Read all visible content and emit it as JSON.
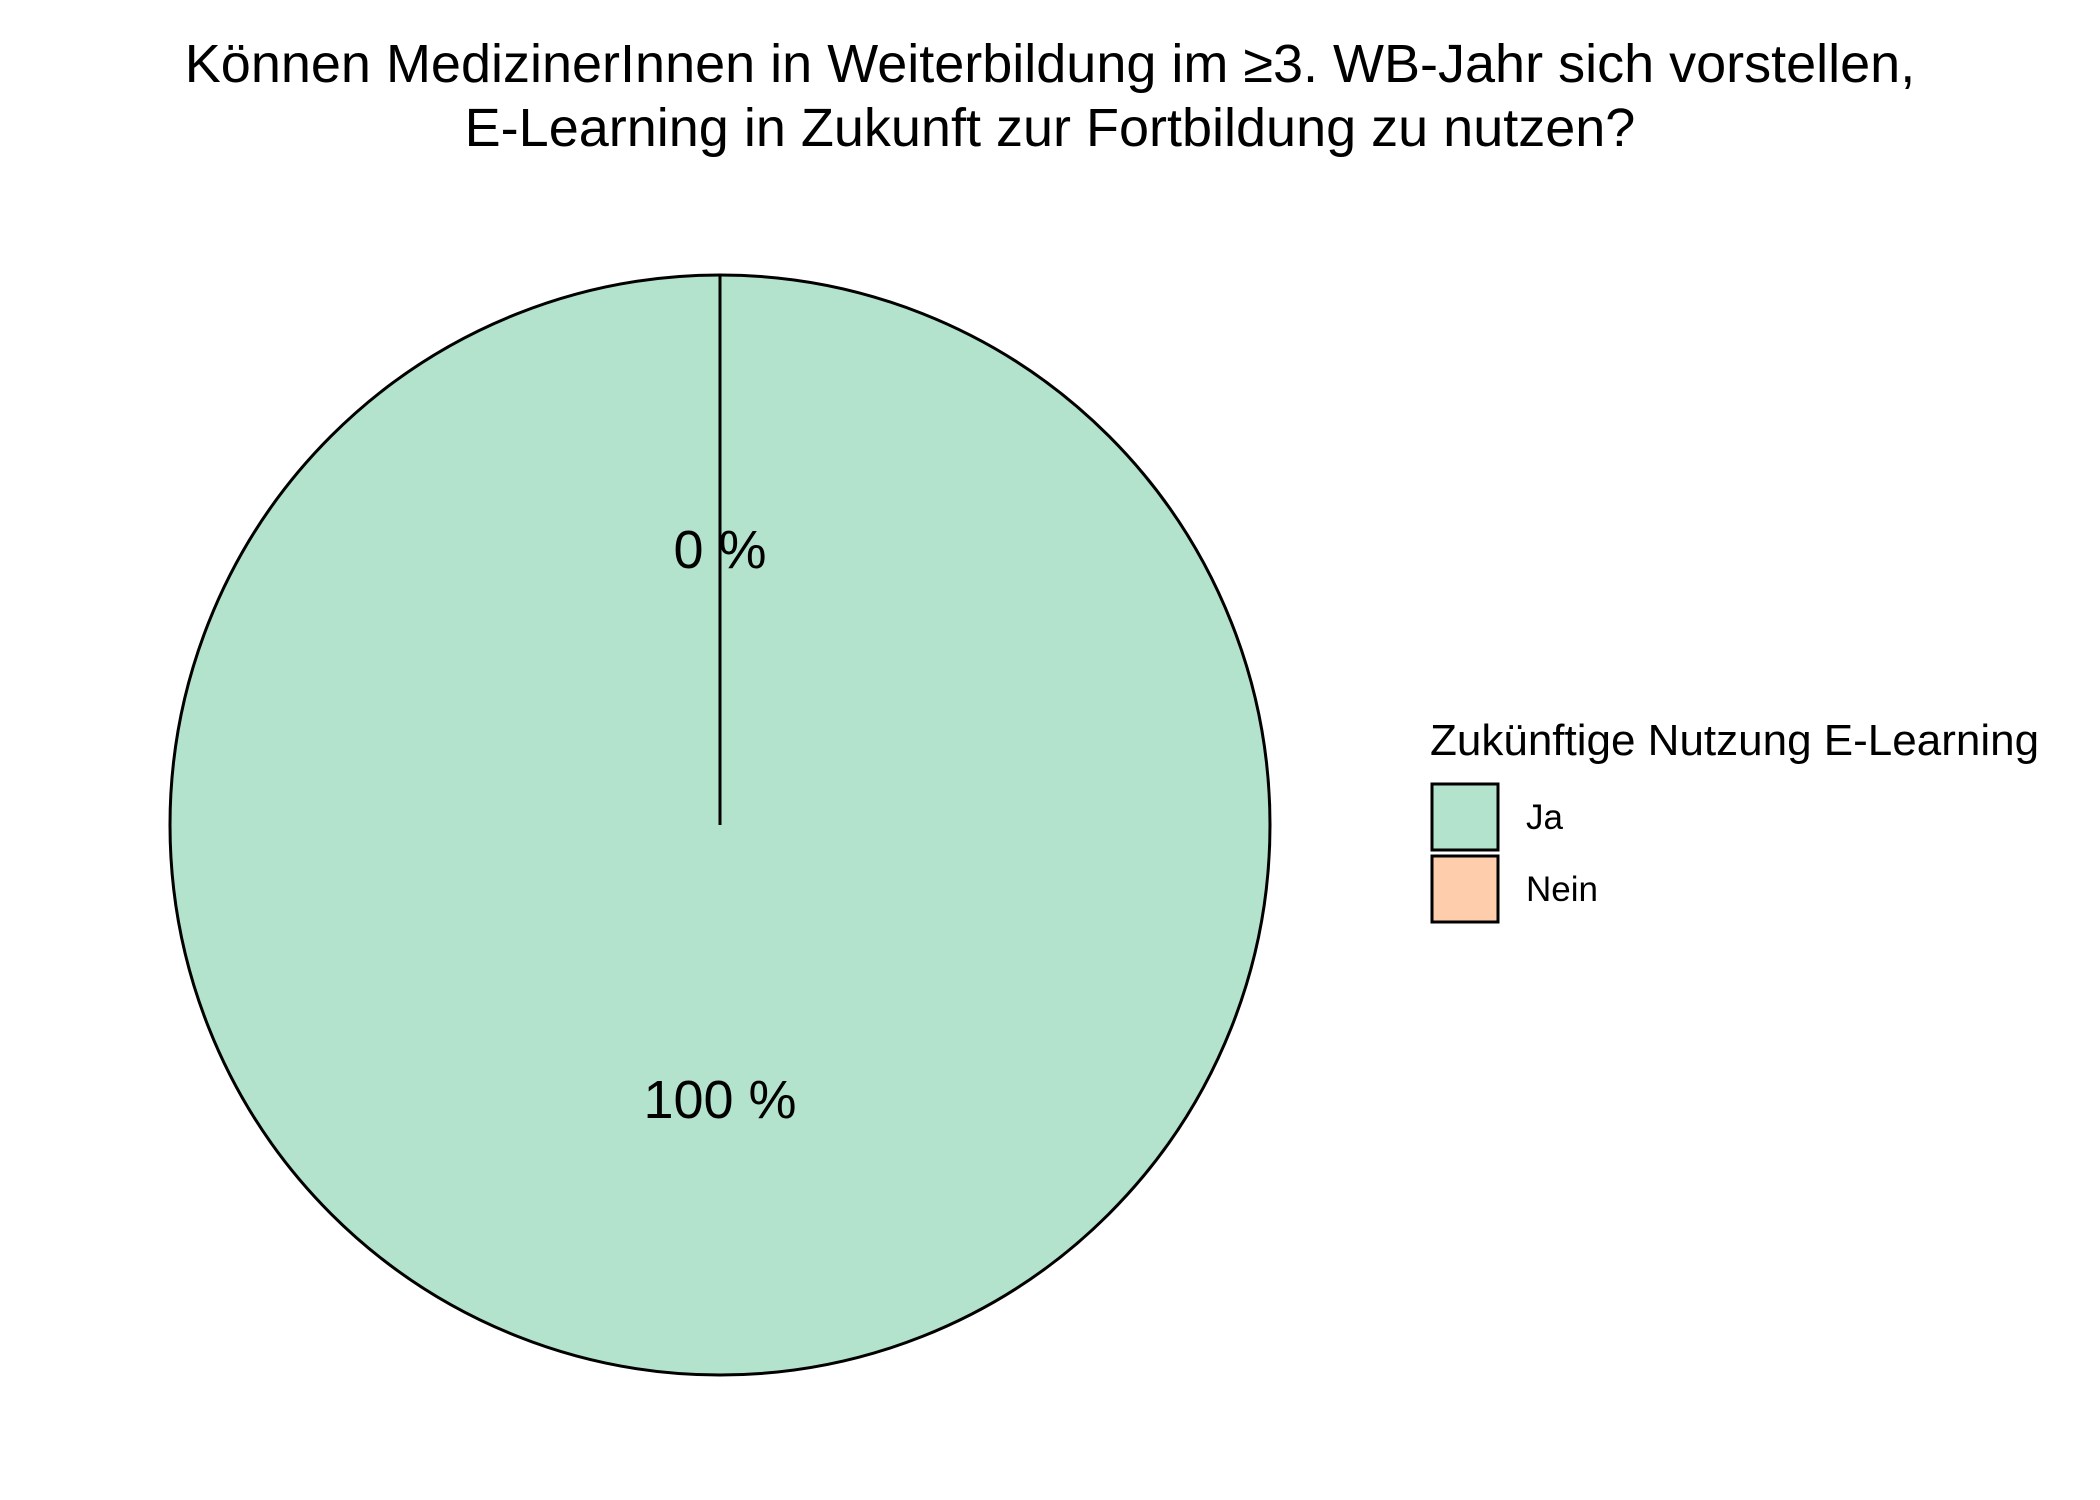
{
  "chart_data": {
    "type": "pie",
    "title_lines": [
      "Können MedizinerInnen in Weiterbildung im ≥3. WB-Jahr sich vorstellen,",
      "E-Learning in Zukunft zur Fortbildung zu nutzen?"
    ],
    "categories": [
      "Ja",
      "Nein"
    ],
    "values": [
      100,
      0
    ],
    "labels": [
      "100 %",
      "0 %"
    ],
    "colors": [
      "#b3e2cd",
      "#fdcdac"
    ],
    "legend": {
      "title": "Zukünftige Nutzung E-Learning",
      "placement": "right"
    }
  }
}
